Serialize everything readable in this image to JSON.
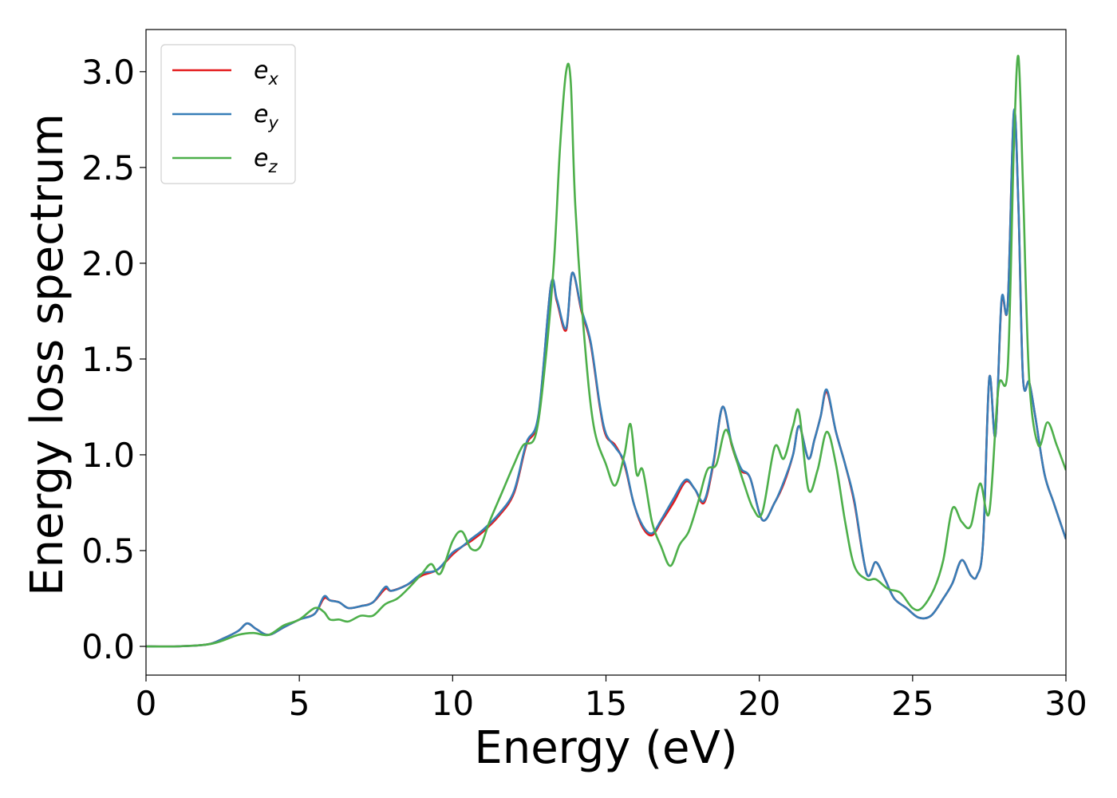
{
  "chart_data": {
    "type": "line",
    "title": "",
    "xlabel": "Energy (eV)",
    "ylabel": "Energy loss spectrum",
    "xlim": [
      0,
      30
    ],
    "ylim": [
      -0.15,
      3.22
    ],
    "xticks": [
      "0",
      "5",
      "10",
      "15",
      "20",
      "25",
      "30"
    ],
    "yticks": [
      "0.0",
      "0.5",
      "1.0",
      "1.5",
      "2.0",
      "2.5",
      "3.0"
    ],
    "grid": false,
    "legend_position": "upper-left",
    "series": [
      {
        "name": "e_x",
        "legend_base": "e",
        "legend_sub": "x",
        "color": "#e41a1c",
        "x": [
          0,
          1,
          2,
          2.5,
          3,
          3.3,
          3.6,
          4,
          4.5,
          5,
          5.5,
          5.8,
          6,
          6.3,
          6.6,
          7,
          7.4,
          7.8,
          8,
          8.5,
          9,
          9.5,
          10,
          10.3,
          10.6,
          11,
          11.5,
          12,
          12.4,
          12.8,
          13.2,
          13.4,
          13.7,
          13.9,
          14.2,
          14.5,
          14.8,
          15,
          15.3,
          15.6,
          15.9,
          16.2,
          16.5,
          16.8,
          17.2,
          17.6,
          17.9,
          18.2,
          18.5,
          18.8,
          19.1,
          19.4,
          19.7,
          20.1,
          20.5,
          20.8,
          21.1,
          21.3,
          21.6,
          21.8,
          22,
          22.2,
          22.5,
          22.8,
          23.1,
          23.5,
          23.8,
          24.1,
          24.4,
          24.8,
          25.2,
          25.6,
          26,
          26.3,
          26.6,
          26.9,
          27.1,
          27.3,
          27.5,
          27.7,
          27.9,
          28.1,
          28.3,
          28.45,
          28.6,
          28.8,
          29,
          29.3,
          29.6,
          30
        ],
        "y": [
          0,
          0,
          0.01,
          0.04,
          0.08,
          0.12,
          0.09,
          0.06,
          0.1,
          0.14,
          0.17,
          0.25,
          0.24,
          0.23,
          0.2,
          0.21,
          0.23,
          0.3,
          0.29,
          0.32,
          0.37,
          0.4,
          0.48,
          0.52,
          0.55,
          0.6,
          0.68,
          0.8,
          1.05,
          1.2,
          1.88,
          1.8,
          1.65,
          1.95,
          1.75,
          1.58,
          1.25,
          1.1,
          1.05,
          0.95,
          0.75,
          0.62,
          0.58,
          0.65,
          0.75,
          0.86,
          0.82,
          0.75,
          0.95,
          1.25,
          1.05,
          0.92,
          0.88,
          0.66,
          0.75,
          0.85,
          1.0,
          1.15,
          0.98,
          1.08,
          1.2,
          1.33,
          1.12,
          0.95,
          0.75,
          0.38,
          0.44,
          0.35,
          0.25,
          0.2,
          0.15,
          0.16,
          0.25,
          0.33,
          0.45,
          0.37,
          0.37,
          0.55,
          1.4,
          1.1,
          1.8,
          1.78,
          2.78,
          2.3,
          1.4,
          1.38,
          1.2,
          0.9,
          0.75,
          0.56
        ]
      },
      {
        "name": "e_y",
        "legend_base": "e",
        "legend_sub": "y",
        "color": "#377eb8",
        "x": [
          0,
          1,
          2,
          2.5,
          3,
          3.3,
          3.6,
          4,
          4.5,
          5,
          5.5,
          5.8,
          6,
          6.3,
          6.6,
          7,
          7.4,
          7.8,
          8,
          8.5,
          9,
          9.5,
          10,
          10.3,
          10.6,
          11,
          11.5,
          12,
          12.4,
          12.8,
          13.2,
          13.4,
          13.7,
          13.9,
          14.2,
          14.5,
          14.8,
          15,
          15.3,
          15.6,
          15.9,
          16.2,
          16.5,
          16.8,
          17.2,
          17.6,
          17.9,
          18.2,
          18.5,
          18.8,
          19.1,
          19.4,
          19.7,
          20.1,
          20.5,
          20.8,
          21.1,
          21.3,
          21.6,
          21.8,
          22,
          22.2,
          22.5,
          22.8,
          23.1,
          23.5,
          23.8,
          24.1,
          24.4,
          24.8,
          25.2,
          25.6,
          26,
          26.3,
          26.6,
          26.9,
          27.1,
          27.3,
          27.5,
          27.7,
          27.9,
          28.1,
          28.3,
          28.45,
          28.6,
          28.8,
          29,
          29.3,
          29.6,
          30
        ],
        "y": [
          0,
          0,
          0.01,
          0.04,
          0.08,
          0.12,
          0.09,
          0.06,
          0.1,
          0.14,
          0.17,
          0.26,
          0.24,
          0.23,
          0.2,
          0.21,
          0.23,
          0.31,
          0.29,
          0.32,
          0.38,
          0.4,
          0.49,
          0.52,
          0.56,
          0.61,
          0.69,
          0.81,
          1.06,
          1.21,
          1.88,
          1.81,
          1.66,
          1.95,
          1.76,
          1.59,
          1.26,
          1.11,
          1.04,
          0.96,
          0.75,
          0.63,
          0.59,
          0.66,
          0.77,
          0.87,
          0.82,
          0.76,
          0.96,
          1.25,
          1.06,
          0.93,
          0.88,
          0.66,
          0.75,
          0.86,
          1.0,
          1.15,
          0.98,
          1.08,
          1.2,
          1.34,
          1.12,
          0.95,
          0.76,
          0.38,
          0.44,
          0.35,
          0.25,
          0.2,
          0.15,
          0.16,
          0.25,
          0.33,
          0.45,
          0.37,
          0.37,
          0.55,
          1.4,
          1.1,
          1.81,
          1.78,
          2.79,
          2.3,
          1.4,
          1.38,
          1.2,
          0.9,
          0.75,
          0.56
        ]
      },
      {
        "name": "e_z",
        "legend_base": "e",
        "legend_sub": "z",
        "color": "#4daf4a",
        "x": [
          0,
          1,
          2,
          2.5,
          3,
          3.5,
          4,
          4.5,
          5,
          5.5,
          5.8,
          6,
          6.3,
          6.6,
          7,
          7.4,
          7.8,
          8.2,
          8.6,
          9,
          9.3,
          9.6,
          10,
          10.3,
          10.6,
          10.9,
          11.2,
          11.6,
          12,
          12.3,
          12.7,
          13,
          13.3,
          13.5,
          13.7,
          13.85,
          14,
          14.3,
          14.6,
          15,
          15.3,
          15.6,
          15.8,
          16,
          16.2,
          16.5,
          16.8,
          17.1,
          17.4,
          17.7,
          18,
          18.3,
          18.6,
          18.9,
          19.2,
          19.5,
          19.8,
          20.1,
          20.5,
          20.8,
          21.1,
          21.3,
          21.6,
          21.9,
          22.2,
          22.5,
          22.8,
          23.1,
          23.5,
          23.8,
          24.2,
          24.6,
          25,
          25.3,
          25.7,
          26,
          26.3,
          26.6,
          26.9,
          27.2,
          27.5,
          27.8,
          28.1,
          28.3,
          28.45,
          28.6,
          28.8,
          29.1,
          29.4,
          29.7,
          30
        ],
        "y": [
          0,
          0,
          0.01,
          0.03,
          0.06,
          0.07,
          0.06,
          0.11,
          0.14,
          0.2,
          0.18,
          0.14,
          0.14,
          0.13,
          0.16,
          0.16,
          0.22,
          0.25,
          0.31,
          0.38,
          0.43,
          0.38,
          0.55,
          0.6,
          0.51,
          0.52,
          0.65,
          0.8,
          0.95,
          1.05,
          1.1,
          1.45,
          2.0,
          2.6,
          3.0,
          2.95,
          2.3,
          1.6,
          1.15,
          0.95,
          0.84,
          1.0,
          1.16,
          0.9,
          0.92,
          0.65,
          0.52,
          0.42,
          0.53,
          0.6,
          0.75,
          0.92,
          0.95,
          1.13,
          1.0,
          0.85,
          0.72,
          0.7,
          1.04,
          0.98,
          1.15,
          1.22,
          0.82,
          0.92,
          1.12,
          0.95,
          0.65,
          0.42,
          0.35,
          0.35,
          0.3,
          0.28,
          0.2,
          0.2,
          0.3,
          0.45,
          0.72,
          0.65,
          0.63,
          0.85,
          0.7,
          1.35,
          1.45,
          2.6,
          3.08,
          2.4,
          1.4,
          1.05,
          1.17,
          1.05,
          0.92
        ]
      }
    ]
  }
}
